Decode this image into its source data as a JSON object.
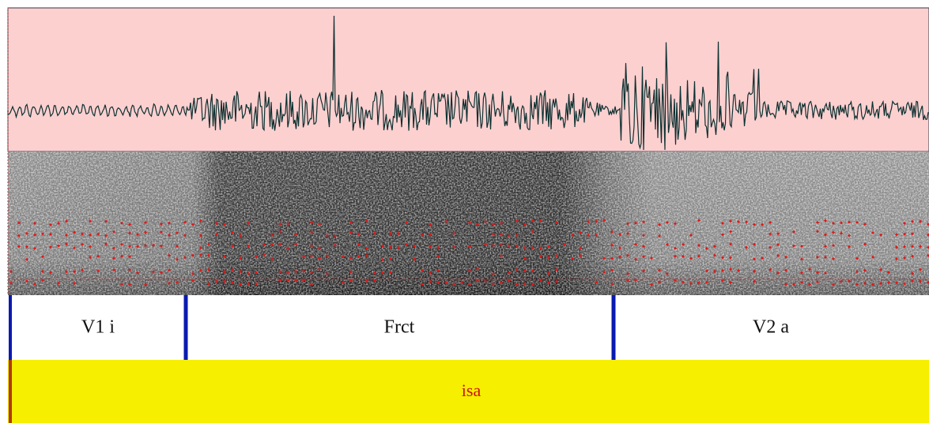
{
  "tiers": [
    {
      "intervals": [
        {
          "label": "V1 i"
        },
        {
          "label": "Frct"
        },
        {
          "label": "V2 a"
        }
      ]
    },
    {
      "intervals": [
        {
          "label": "isa"
        }
      ]
    }
  ]
}
